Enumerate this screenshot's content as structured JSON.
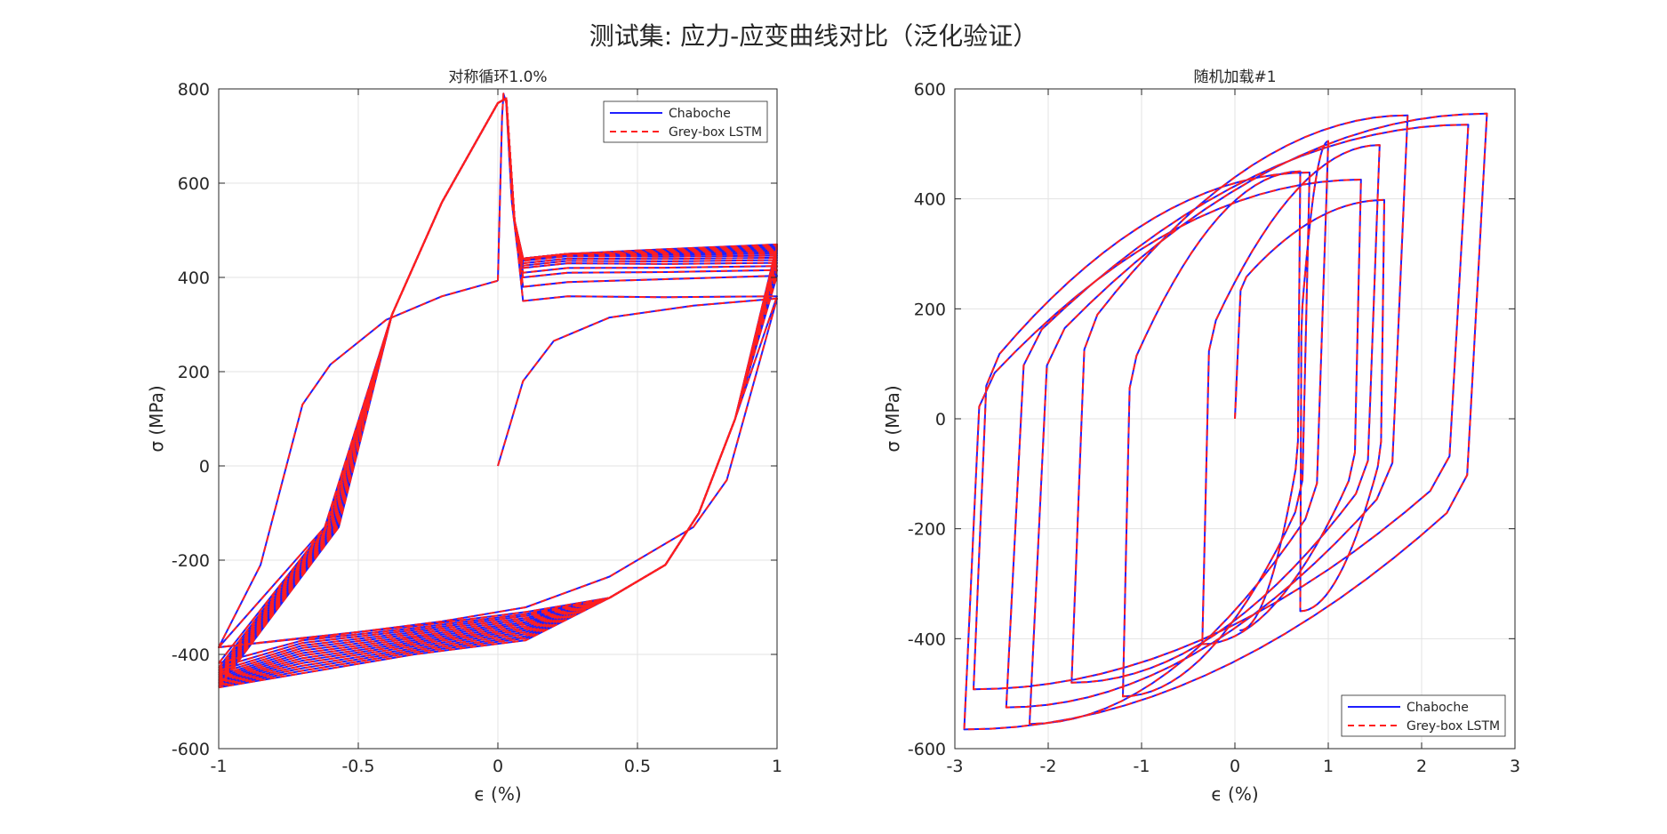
{
  "figure": {
    "suptitle": "测试集: 应力-应变曲线对比（泛化验证）"
  },
  "colors": {
    "chaboche": "#1f1fff",
    "lstm": "#ff1f1f",
    "axis": "#262626",
    "grid": "#e3e3e3"
  },
  "chart_data": [
    {
      "type": "line",
      "title": "对称循环1.0%",
      "xlabel": "ϵ (%)",
      "ylabel": "σ (MPa)",
      "xlim": [
        -1,
        1
      ],
      "ylim": [
        -600,
        800
      ],
      "xticks": [
        "-1",
        "-0.5",
        "0",
        "0.5",
        "1"
      ],
      "yticks": [
        "-600",
        "-400",
        "-200",
        "0",
        "200",
        "400",
        "600",
        "800"
      ],
      "grid": true,
      "legend_position": "top-right",
      "series": [
        {
          "name": "Chaboche",
          "style": "solid"
        },
        {
          "name": "Grey-box LSTM",
          "style": "dashed"
        }
      ],
      "model": {
        "cycles": 15,
        "initial_loading": [
          [
            0,
            0
          ],
          [
            0.09,
            180
          ],
          [
            0.2,
            265
          ],
          [
            0.4,
            315
          ],
          [
            0.7,
            340
          ],
          [
            1.0,
            355
          ]
        ],
        "first_reversal": [
          [
            1.0,
            355
          ],
          [
            0.82,
            -30
          ],
          [
            0.7,
            -130
          ],
          [
            0.4,
            -235
          ],
          [
            0.1,
            -300
          ],
          [
            -0.2,
            -330
          ],
          [
            -0.6,
            -360
          ],
          [
            -1.0,
            -385
          ]
        ],
        "first_reload": [
          [
            -1.0,
            -385
          ],
          [
            -0.85,
            -210
          ],
          [
            -0.7,
            130
          ],
          [
            -0.6,
            215
          ],
          [
            -0.4,
            310
          ],
          [
            -0.2,
            360
          ],
          [
            0.0,
            393
          ]
        ],
        "steady_peak": {
          "max": [
            1.0,
            470
          ],
          "min": [
            -1.0,
            -470
          ]
        },
        "overshoot_peak": [
          0.02,
          790
        ],
        "overshoot_valley": [
          0.08,
          440
        ],
        "approx_upper_levels": [
          340,
          370,
          390,
          400,
          410,
          415,
          420,
          425,
          428,
          430
        ],
        "approx_lower_levels": [
          -385,
          -400,
          -412,
          -422,
          -430,
          -437,
          -443,
          -448,
          -452,
          -458,
          -462,
          -466,
          -468,
          -470,
          -470
        ]
      }
    },
    {
      "type": "line",
      "title": "随机加载#1",
      "xlabel": "ϵ (%)",
      "ylabel": "σ (MPa)",
      "xlim": [
        -3,
        3
      ],
      "ylim": [
        -600,
        600
      ],
      "xticks": [
        "-3",
        "-2",
        "-1",
        "0",
        "1",
        "2",
        "3"
      ],
      "yticks": [
        "-600",
        "-400",
        "-200",
        "0",
        "200",
        "400",
        "600"
      ],
      "grid": true,
      "legend_position": "bottom-right",
      "series": [
        {
          "name": "Chaboche",
          "style": "solid"
        },
        {
          "name": "Grey-box LSTM",
          "style": "dashed"
        }
      ],
      "reversal_points": [
        [
          0,
          0
        ],
        [
          1.6,
          398
        ],
        [
          0.7,
          -350
        ],
        [
          1.0,
          505
        ],
        [
          -2.2,
          -555
        ],
        [
          2.7,
          555
        ],
        [
          -2.9,
          -565
        ],
        [
          1.35,
          435
        ],
        [
          -0.35,
          -410
        ],
        [
          1.55,
          498
        ],
        [
          -1.75,
          -480
        ],
        [
          1.85,
          552
        ],
        [
          -2.45,
          -525
        ],
        [
          2.5,
          535
        ],
        [
          -2.8,
          -492
        ],
        [
          0.8,
          448
        ],
        [
          -1.2,
          -505
        ],
        [
          0.7,
          450
        ],
        [
          0.05,
          -385
        ]
      ]
    }
  ]
}
